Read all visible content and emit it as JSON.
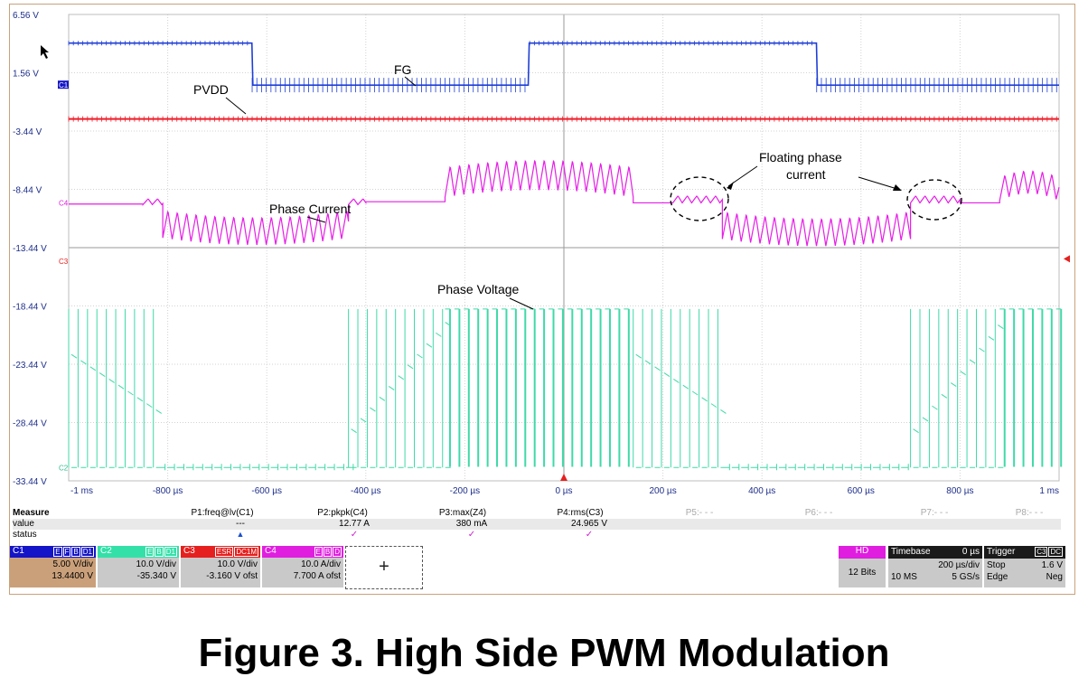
{
  "chart_data": {
    "type": "line",
    "title": "",
    "xlabel": "",
    "ylabel": "",
    "x_tick_labels": [
      "-1 ms",
      "-800 µs",
      "-600 µs",
      "-400 µs",
      "-200 µs",
      "0 µs",
      "200 µs",
      "400 µs",
      "600 µs",
      "800 µs",
      "1 ms"
    ],
    "x_ticks_us": [
      -1000,
      -800,
      -600,
      -400,
      -200,
      0,
      200,
      400,
      600,
      800,
      1000
    ],
    "y_tick_labels": [
      "6.56 V",
      "1.56 V",
      "-3.44 V",
      "-8.44 V",
      "-13.44 V",
      "-18.44 V",
      "-23.44 V",
      "-28.44 V",
      "-33.44 V"
    ],
    "y_ticks": [
      6.56,
      1.56,
      -3.44,
      -8.44,
      -13.44,
      -18.44,
      -23.44,
      -28.44,
      -33.44
    ],
    "ylim": [
      -33.44,
      6.56
    ],
    "xlim_us": [
      -1000,
      1000
    ],
    "grid": true,
    "series": [
      {
        "name": "FG",
        "color": "#1f3fd6",
        "level_high": 4.1,
        "level_low": 0.5,
        "high_intervals_us": [
          [
            -1000,
            -630
          ],
          [
            -70,
            510
          ]
        ]
      },
      {
        "name": "PVDD",
        "color": "#ee1f2a",
        "level": -2.4
      },
      {
        "name": "Phase Current",
        "color": "#e61ee6",
        "segments_us": [
          {
            "from": -1000,
            "to": -850,
            "shape": "flat",
            "level": -9.7
          },
          {
            "from": -850,
            "to": -810,
            "shape": "ripple",
            "base": -9.5,
            "amp": 0.5
          },
          {
            "from": -810,
            "to": -435,
            "shape": "sawtooth",
            "base": -11.4,
            "amp": 1.2
          },
          {
            "from": -435,
            "to": -400,
            "shape": "ripple",
            "base": -9.5,
            "amp": 0.5
          },
          {
            "from": -400,
            "to": -240,
            "shape": "flat",
            "level": -9.5
          },
          {
            "from": -240,
            "to": 140,
            "shape": "sawtooth",
            "base": -7.8,
            "amp": 1.3
          },
          {
            "from": 140,
            "to": 220,
            "shape": "flat",
            "level": -9.6
          },
          {
            "from": 220,
            "to": 320,
            "shape": "ripple",
            "base": -9.3,
            "amp": 0.6
          },
          {
            "from": 320,
            "to": 700,
            "shape": "sawtooth",
            "base": -11.5,
            "amp": 1.2
          },
          {
            "from": 700,
            "to": 800,
            "shape": "ripple",
            "base": -9.3,
            "amp": 0.6
          },
          {
            "from": 800,
            "to": 880,
            "shape": "flat",
            "level": -9.6
          },
          {
            "from": 880,
            "to": 1000,
            "shape": "sawtooth",
            "base": -8.4,
            "amp": 1.0
          }
        ]
      },
      {
        "name": "Phase Voltage",
        "color": "#3fd9a8",
        "pwm": true,
        "top": -18.7,
        "segments_us": [
          {
            "from": -1000,
            "to": -820,
            "shape": "decay",
            "start": -22.6,
            "end": -27.6,
            "floor": -32.3
          },
          {
            "from": -820,
            "to": -435,
            "shape": "low",
            "level": -32.3
          },
          {
            "from": -435,
            "to": -240,
            "shape": "rise",
            "start": -29.0,
            "end": -19.6,
            "floor": -32.3
          },
          {
            "from": -240,
            "to": 140,
            "shape": "high",
            "level": -18.7
          },
          {
            "from": 140,
            "to": 320,
            "shape": "decay",
            "start": -22.6,
            "end": -27.6,
            "floor": -32.3
          },
          {
            "from": 320,
            "to": 700,
            "shape": "low",
            "level": -32.3
          },
          {
            "from": 700,
            "to": 880,
            "shape": "rise",
            "start": -29.0,
            "end": -19.6,
            "floor": -32.3
          },
          {
            "from": 880,
            "to": 1000,
            "shape": "high",
            "level": -18.7
          }
        ]
      }
    ],
    "annotations": [
      "FG",
      "PVDD",
      "Phase Current",
      "Phase Voltage",
      "Floating phase",
      "current"
    ],
    "channel_markers": [
      "C1",
      "C4",
      "C3",
      "C2"
    ]
  },
  "measure": {
    "header": "Measure",
    "row_labels": [
      "value",
      "status"
    ],
    "params": [
      {
        "label": "P1:freq@lv(C1)",
        "value": "---"
      },
      {
        "label": "P2:pkpk(C4)",
        "value": "12.77 A"
      },
      {
        "label": "P3:max(Z4)",
        "value": "380 mA"
      },
      {
        "label": "P4:rms(C3)",
        "value": "24.965 V"
      },
      {
        "label": "P5:- - -",
        "value": ""
      },
      {
        "label": "P6:- - -",
        "value": ""
      },
      {
        "label": "P7:- - -",
        "value": ""
      },
      {
        "label": "P8:- - -",
        "value": ""
      }
    ],
    "status_tick": "✓",
    "status_triangle": "▲"
  },
  "channels": [
    {
      "name": "C1",
      "flags": [
        "E",
        "F",
        "B",
        "D1"
      ],
      "vdiv": "5.00 V/div",
      "ofst": "13.4400 V",
      "color": "#1414c8"
    },
    {
      "name": "C2",
      "flags": [
        "E",
        "B",
        "D1"
      ],
      "vdiv": "10.0 V/div",
      "ofst": "-35.340 V",
      "color": "#33e0a8"
    },
    {
      "name": "C3",
      "flags": [
        "ESR",
        "DC1M"
      ],
      "vdiv": "10.0 V/div",
      "ofst": "-3.160 V ofst",
      "color": "#e5201e"
    },
    {
      "name": "C4",
      "flags": [
        "E",
        "B",
        "D"
      ],
      "vdiv": "10.0 A/div",
      "ofst": "7.700 A ofst",
      "color": "#e01ee0"
    }
  ],
  "add_button": "+",
  "hd": {
    "label": "HD",
    "bits": "12 Bits",
    "color": "#e01ee0"
  },
  "timebase": {
    "label": "Timebase",
    "delay": "0 µs",
    "sdiv": "200 µs/div",
    "samples": "10 MS",
    "rate": "5 GS/s"
  },
  "trigger": {
    "label": "Trigger",
    "chan": "C3",
    "coupling": "DC",
    "mode": "Stop",
    "level": "1.6 V",
    "type": "Edge",
    "slope": "Neg"
  },
  "caption": "Figure 3. High Side PWM Modulation"
}
